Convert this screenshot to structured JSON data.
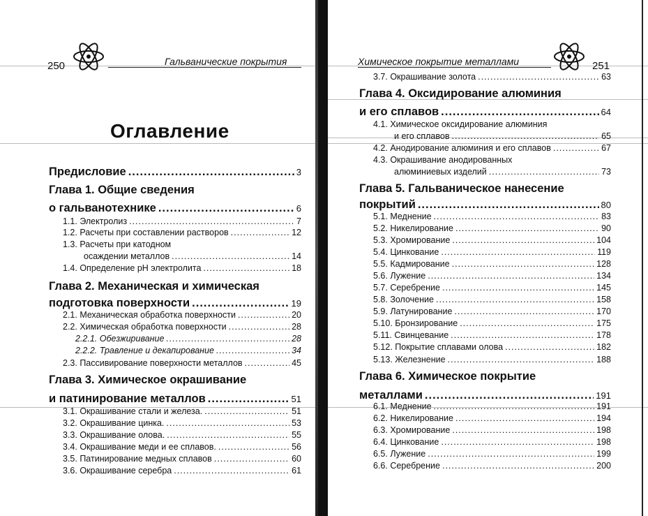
{
  "left_page": {
    "page_number": "250",
    "running_head": "Гальванические покрытия",
    "title": "Оглавление",
    "entries": [
      {
        "type": "chapter",
        "text": "Предисловие",
        "page": "3"
      },
      {
        "type": "chapter-head",
        "text": "Глава 1. Общие сведения"
      },
      {
        "type": "chapter",
        "text": " о гальванотехнике",
        "page": "6"
      },
      {
        "type": "section",
        "text": "1.1. Электролиз",
        "page": "7"
      },
      {
        "type": "section",
        "text": "1.2. Расчеты при составлении растворов",
        "page": "12"
      },
      {
        "type": "section-head",
        "text": "1.3. Расчеты при катодном"
      },
      {
        "type": "section-cont",
        "text": "осаждении  металлов",
        "page": "14"
      },
      {
        "type": "section",
        "text": "1.4. Определение pH электролита",
        "page": "18"
      },
      {
        "type": "chapter-head",
        "text": "Глава 2. Механическая и химическая"
      },
      {
        "type": "chapter",
        "text": "подготовка поверхности",
        "page": "19"
      },
      {
        "type": "section",
        "text": "2.1. Механическая обработка поверхности",
        "page": "20"
      },
      {
        "type": "section",
        "text": "2.2. Химическая обработка поверхности",
        "page": "28"
      },
      {
        "type": "subsection",
        "text": "2.2.1. Обезжиривание",
        "page": "28"
      },
      {
        "type": "subsection",
        "text": "2.2.2. Травление и декапирование",
        "page": "34"
      },
      {
        "type": "section",
        "text": "2.3. Пассивирование поверхности металлов",
        "page": "45"
      },
      {
        "type": "chapter-head",
        "text": "Глава 3. Химическое окрашивание"
      },
      {
        "type": "chapter",
        "text": "и патинирование металлов",
        "page": "51"
      },
      {
        "type": "section",
        "text": "3.1. Окрашивание стали и железа.",
        "page": "51"
      },
      {
        "type": "section",
        "text": "3.2. Окрашивание цинка.",
        "page": "53"
      },
      {
        "type": "section",
        "text": "3.3. Окрашивание олова.",
        "page": "55"
      },
      {
        "type": "section",
        "text": "3.4. Окрашивание меди и ее сплавов.",
        "page": "56"
      },
      {
        "type": "section",
        "text": "3.5. Патинирование медных сплавов",
        "page": "60"
      },
      {
        "type": "section",
        "text": "3.6. Окрашивание серебра",
        "page": "61"
      }
    ]
  },
  "right_page": {
    "page_number": "251",
    "running_head": "Химическое покрытие металлами",
    "entries": [
      {
        "type": "section",
        "text": "3.7. Окрашивание золота",
        "page": "63"
      },
      {
        "type": "chapter-head",
        "text": "Глава 4. Оксидирование алюминия"
      },
      {
        "type": "chapter",
        "text": "и его сплавов",
        "page": "64"
      },
      {
        "type": "section-head",
        "text": "4.1. Химическое оксидирование алюминия"
      },
      {
        "type": "section-cont",
        "text": "и его сплавов",
        "page": "65"
      },
      {
        "type": "section",
        "text": "4.2. Анодирование алюминия и его сплавов",
        "page": "67"
      },
      {
        "type": "section-head",
        "text": "4.3. Окрашивание анодированных"
      },
      {
        "type": "section-cont",
        "text": "алюминиевых изделий",
        "page": "73"
      },
      {
        "type": "chapter-head",
        "text": "Глава 5. Гальваническое нанесение"
      },
      {
        "type": "chapter",
        "text": "покрытий",
        "page": "80"
      },
      {
        "type": "section",
        "text": "5.1.  Меднение",
        "page": "83"
      },
      {
        "type": "section",
        "text": "5.2. Никелирование",
        "page": "90"
      },
      {
        "type": "section",
        "text": "5.3. Хромирование",
        "page": "104"
      },
      {
        "type": "section",
        "text": "5.4. Цинкование",
        "page": "119"
      },
      {
        "type": "section",
        "text": "5.5. Кадмирование",
        "page": "128"
      },
      {
        "type": "section",
        "text": "5.6. Лужение",
        "page": "134"
      },
      {
        "type": "section",
        "text": "5.7. Серебрение",
        "page": "145"
      },
      {
        "type": "section",
        "text": "5.8. Золочение",
        "page": "158"
      },
      {
        "type": "section",
        "text": "5.9. Латунирование",
        "page": "170"
      },
      {
        "type": "section",
        "text": "5.10. Бронзирование",
        "page": "175"
      },
      {
        "type": "section",
        "text": "5.11. Свинцевание",
        "page": "178"
      },
      {
        "type": "section",
        "text": "5.12. Покрытие сплавами олова",
        "page": "182"
      },
      {
        "type": "section",
        "text": "5.13. Железнение",
        "page": "188"
      },
      {
        "type": "chapter-head",
        "text": "Глава 6. Химическое покрытие"
      },
      {
        "type": "chapter",
        "text": "металлами",
        "page": "191"
      },
      {
        "type": "section",
        "text": "6.1. Меднение",
        "page": "191"
      },
      {
        "type": "section",
        "text": "6.2. Никелирование",
        "page": "194"
      },
      {
        "type": "section",
        "text": "6.3. Хромирование",
        "page": "198"
      },
      {
        "type": "section",
        "text": "6.4. Цинкование",
        "page": "198"
      },
      {
        "type": "section",
        "text": "6.5. Лужение",
        "page": "199"
      },
      {
        "type": "section",
        "text": "6.6. Серебрение",
        "page": "200"
      }
    ]
  }
}
